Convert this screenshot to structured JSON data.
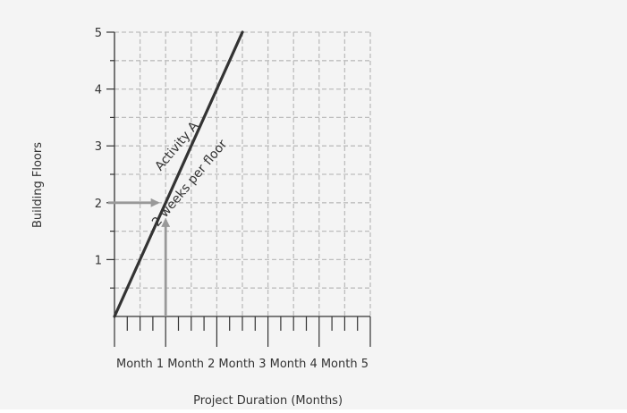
{
  "chart_data": {
    "type": "line",
    "title": "",
    "xlabel": "Project Duration (Months)",
    "ylabel": "Building Floors",
    "x_unit": "weeks",
    "xlim": [
      0,
      20
    ],
    "ylim": [
      0,
      5
    ],
    "y_ticks": [
      1,
      2,
      3,
      4,
      5
    ],
    "x_category_labels": [
      "Month 1",
      "Month 2",
      "Month 3",
      "Month 4",
      "Month 5"
    ],
    "grid": true,
    "grid_style": "dashed",
    "series": [
      {
        "points": [
          [
            0,
            0
          ],
          [
            2,
            1
          ],
          [
            4,
            2
          ],
          [
            6,
            3
          ],
          [
            8,
            4
          ],
          [
            10,
            5
          ]
        ],
        "color": "#333333"
      }
    ],
    "annotations": [
      {
        "text": "Activity A",
        "x": 5.1,
        "y": 2.95,
        "rotation": -50
      },
      {
        "text": "2 weeks per floor",
        "x": 6.1,
        "y": 2.3,
        "rotation": -50
      }
    ],
    "reference_arrows": [
      {
        "from": [
          -0.5,
          2
        ],
        "to": [
          3.4,
          2
        ],
        "color": "#999999"
      },
      {
        "from": [
          4,
          0
        ],
        "to": [
          4,
          1.7
        ],
        "color": "#999999"
      }
    ]
  }
}
